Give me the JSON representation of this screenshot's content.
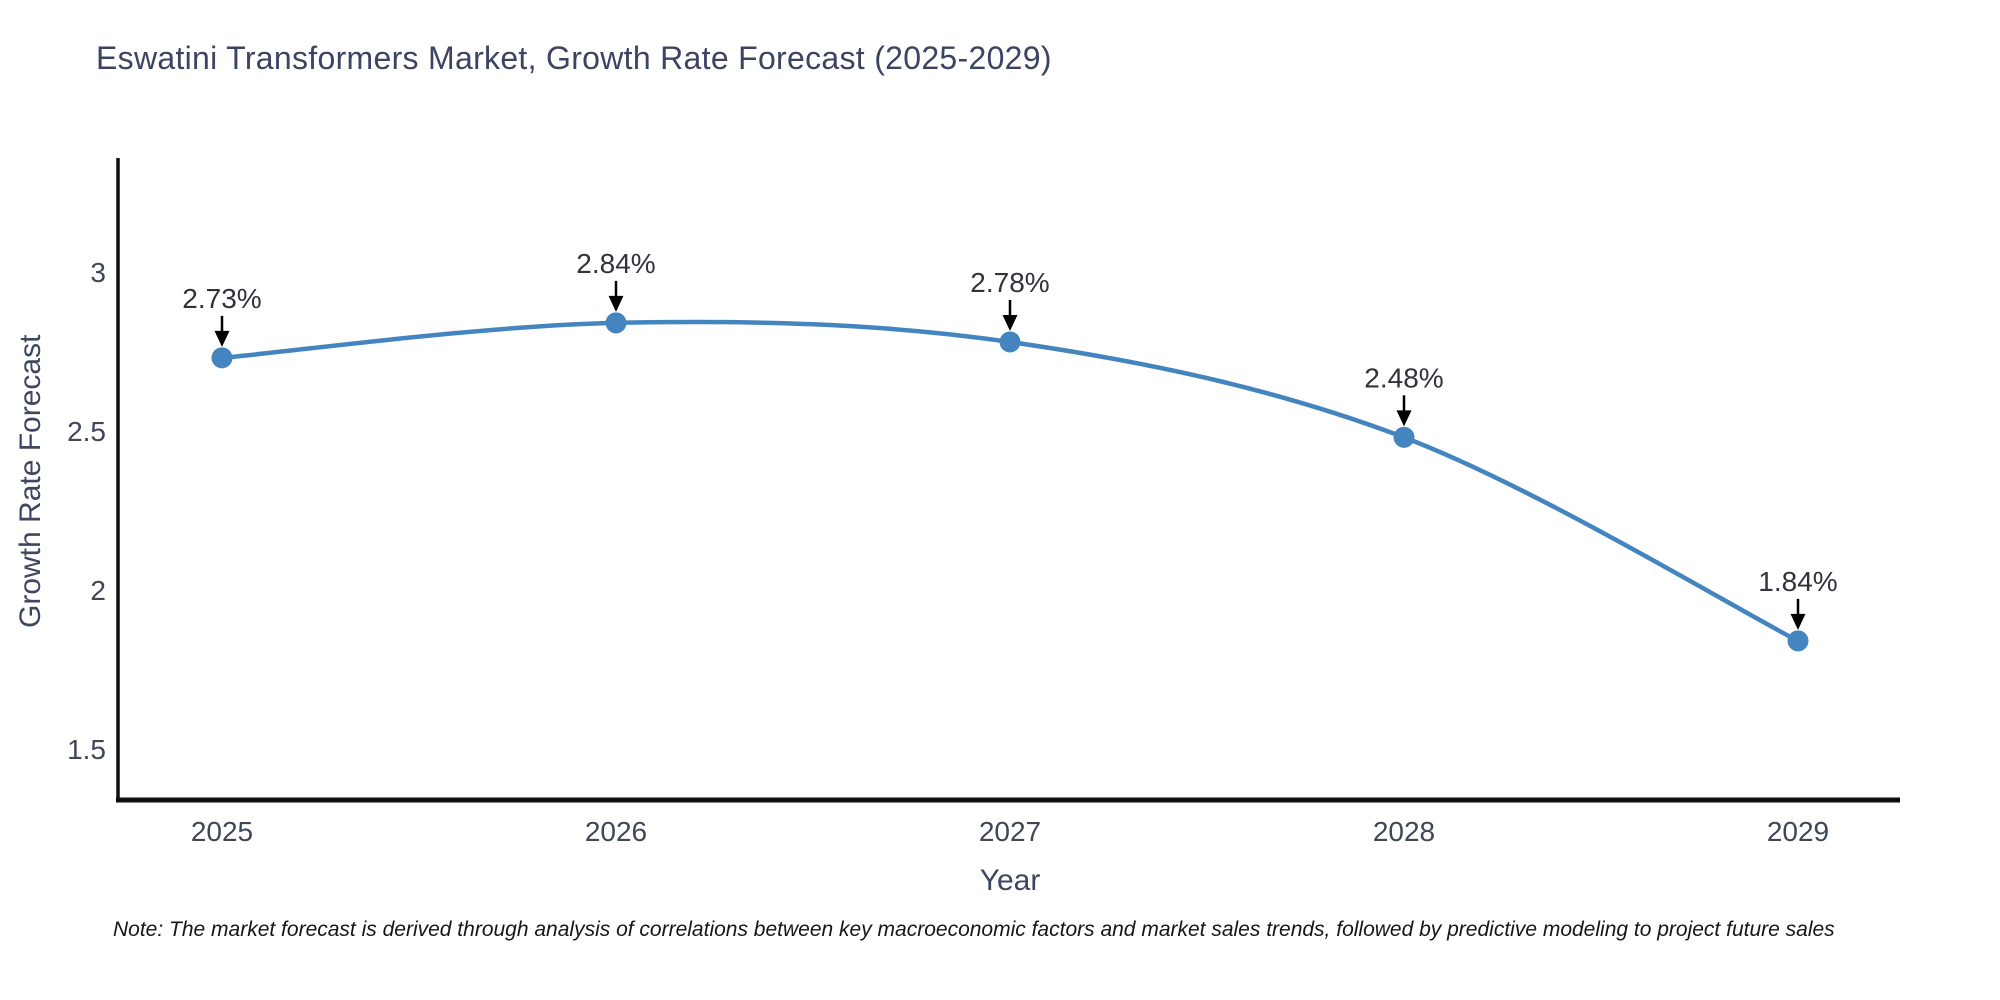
{
  "title": "Eswatini Transformers Market, Growth Rate Forecast (2025-2029)",
  "note": "Note: The market forecast is derived through analysis of correlations between key macroeconomic factors and market sales trends, followed by predictive modeling to project future sales",
  "chart_data": {
    "type": "line",
    "title": "Eswatini Transformers Market, Growth Rate Forecast (2025-2029)",
    "xlabel": "Year",
    "ylabel": "Growth Rate Forecast",
    "x": [
      2025,
      2026,
      2027,
      2028,
      2029
    ],
    "series": [
      {
        "name": "Growth Rate Forecast",
        "values": [
          2.73,
          2.84,
          2.78,
          2.48,
          1.84
        ]
      }
    ],
    "labels": [
      "2.73%",
      "2.84%",
      "2.78%",
      "2.48%",
      "1.84%"
    ],
    "yticks": [
      3,
      2.5,
      2,
      1.5
    ],
    "ylim": [
      1.34,
      3.35
    ],
    "grid": false,
    "legend": "none",
    "marker_size": 10.5,
    "line_width": 4.5,
    "colors": {
      "line": "#4585bf",
      "marker": "#4585bf",
      "arrow": "#000000",
      "axis": "#0e0e11",
      "tick_label": "#3f4657",
      "annotation": "#30333b",
      "title": "#3d4463"
    }
  }
}
